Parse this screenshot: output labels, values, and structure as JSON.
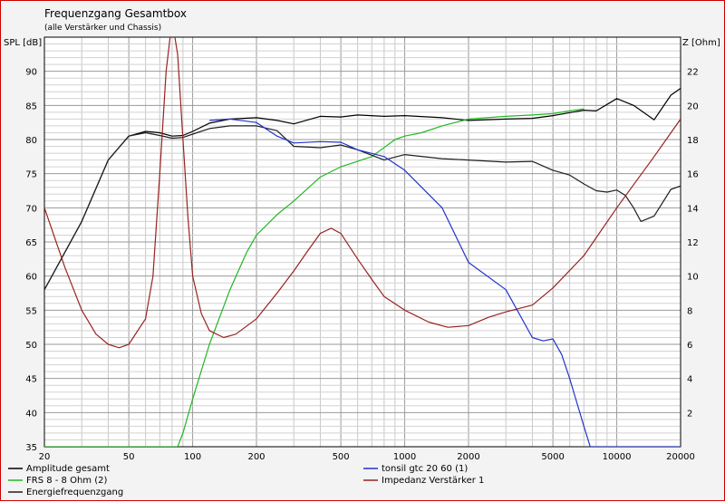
{
  "chart_data": {
    "type": "line",
    "title": "Frequenzgang Gesamtbox",
    "subtitle": "(alle Verstärker und Chassis)",
    "ylabel": "SPL [dB]",
    "y2label": "Z [Ohm]",
    "xscale": "log",
    "xlim": [
      20,
      20000
    ],
    "ylim": [
      35,
      95
    ],
    "y2lim": [
      0,
      24
    ],
    "grid": true,
    "x_ticks": [
      {
        "value": 20,
        "label": "20"
      },
      {
        "value": 50,
        "label": "50"
      },
      {
        "value": 100,
        "label": "100"
      },
      {
        "value": 200,
        "label": "200"
      },
      {
        "value": 500,
        "label": "500"
      },
      {
        "value": 1000,
        "label": "1000"
      },
      {
        "value": 2000,
        "label": "2000"
      },
      {
        "value": 5000,
        "label": "5000"
      },
      {
        "value": 10000,
        "label": "10000"
      },
      {
        "value": 20000,
        "label": "20000"
      }
    ],
    "y_ticks": [
      {
        "value": 35,
        "label": "35"
      },
      {
        "value": 40,
        "label": "40"
      },
      {
        "value": 45,
        "label": "45"
      },
      {
        "value": 50,
        "label": "50"
      },
      {
        "value": 55,
        "label": "55"
      },
      {
        "value": 60,
        "label": "60"
      },
      {
        "value": 65,
        "label": "65"
      },
      {
        "value": 70,
        "label": "70"
      },
      {
        "value": 75,
        "label": "75"
      },
      {
        "value": 80,
        "label": "80"
      },
      {
        "value": 85,
        "label": "85"
      },
      {
        "value": 90,
        "label": "90"
      }
    ],
    "y2_ticks": [
      {
        "value": 2,
        "label": "2"
      },
      {
        "value": 4,
        "label": "4"
      },
      {
        "value": 6,
        "label": "6"
      },
      {
        "value": 8,
        "label": "8"
      },
      {
        "value": 10,
        "label": "10"
      },
      {
        "value": 12,
        "label": "12"
      },
      {
        "value": 14,
        "label": "14"
      },
      {
        "value": 16,
        "label": "16"
      },
      {
        "value": 18,
        "label": "18"
      },
      {
        "value": 20,
        "label": "20"
      },
      {
        "value": 22,
        "label": "22"
      }
    ],
    "legend_position": "bottom",
    "series": [
      {
        "name": "Amplitude gesamt",
        "color": "#000000",
        "axis": "left",
        "x": [
          20,
          30,
          40,
          50,
          60,
          70,
          80,
          90,
          100,
          120,
          150,
          200,
          250,
          300,
          400,
          500,
          600,
          800,
          1000,
          1500,
          2000,
          3000,
          4000,
          5000,
          7000,
          8000,
          10000,
          12000,
          15000,
          18000,
          20000
        ],
        "y": [
          58,
          68,
          77,
          80.5,
          81.2,
          81,
          80.5,
          80.6,
          81.2,
          82.4,
          83,
          83.2,
          82.8,
          82.3,
          83.4,
          83.3,
          83.6,
          83.4,
          83.5,
          83.2,
          82.8,
          83,
          83.1,
          83.5,
          84.3,
          84.2,
          86,
          85,
          82.9,
          86.5,
          87.5
        ]
      },
      {
        "name": "FRS 8 - 8 Ohm (2)",
        "color": "#22b822",
        "axis": "left",
        "x": [
          20,
          85,
          90,
          100,
          120,
          150,
          180,
          200,
          250,
          300,
          400,
          500,
          700,
          900,
          1000,
          1200,
          1500,
          2000,
          3000,
          4000,
          5000,
          6000,
          7000
        ],
        "y": [
          35,
          35,
          37,
          42,
          50,
          58,
          63.5,
          66,
          69,
          71,
          74.5,
          76,
          77.5,
          80,
          80.5,
          81,
          82,
          83,
          83.4,
          83.6,
          83.8,
          84.2,
          84.5
        ]
      },
      {
        "name": "Energiefrequenzgang",
        "color": "#202020",
        "axis": "left",
        "x": [
          20,
          30,
          40,
          50,
          60,
          70,
          80,
          90,
          100,
          120,
          150,
          200,
          250,
          300,
          400,
          500,
          600,
          800,
          1000,
          1500,
          2000,
          3000,
          4000,
          5000,
          6000,
          7000,
          8000,
          9000,
          10000,
          11000,
          12000,
          13000,
          15000,
          18000,
          20000
        ],
        "y": [
          58,
          68,
          77,
          80.5,
          81,
          80.6,
          80.2,
          80.3,
          80.8,
          81.6,
          82,
          82,
          81.3,
          79,
          78.8,
          79.2,
          78.5,
          77,
          77.8,
          77.2,
          77,
          76.7,
          76.8,
          75.5,
          74.8,
          73.5,
          72.5,
          72.3,
          72.6,
          71.8,
          70,
          68,
          68.8,
          72.7,
          73.2
        ]
      },
      {
        "name": "tonsil gtc 20 60 (1)",
        "color": "#2233cc",
        "axis": "left",
        "x": [
          120,
          150,
          200,
          250,
          300,
          400,
          500,
          600,
          800,
          1000,
          1500,
          2000,
          3000,
          4000,
          4500,
          5000,
          5500,
          6000,
          7000,
          7500,
          8000,
          10000,
          20000
        ],
        "y": [
          82.8,
          83,
          82.5,
          80.5,
          79.5,
          79.7,
          79.6,
          78.5,
          77.5,
          75.5,
          70,
          62,
          58,
          51,
          50.5,
          50.8,
          48.5,
          45,
          38,
          35,
          35,
          35,
          35
        ]
      },
      {
        "name": "Impedanz Verstärker 1",
        "color": "#992222",
        "axis": "right",
        "x": [
          20,
          25,
          30,
          35,
          40,
          45,
          50,
          60,
          65,
          70,
          75,
          80,
          85,
          90,
          95,
          100,
          110,
          120,
          140,
          160,
          200,
          250,
          300,
          350,
          400,
          450,
          500,
          600,
          700,
          800,
          1000,
          1300,
          1600,
          2000,
          2500,
          3000,
          4000,
          5000,
          7000,
          10000,
          15000,
          20000
        ],
        "y": [
          14,
          10.5,
          8,
          6.6,
          6,
          5.8,
          6,
          7.5,
          10,
          16,
          22,
          25,
          23,
          18,
          13.5,
          10,
          7.8,
          6.8,
          6.4,
          6.6,
          7.5,
          9,
          10.3,
          11.5,
          12.5,
          12.8,
          12.5,
          11,
          9.8,
          8.8,
          8,
          7.3,
          7,
          7.1,
          7.6,
          7.9,
          8.3,
          9.3,
          11.2,
          14,
          17,
          19.2
        ]
      }
    ]
  }
}
